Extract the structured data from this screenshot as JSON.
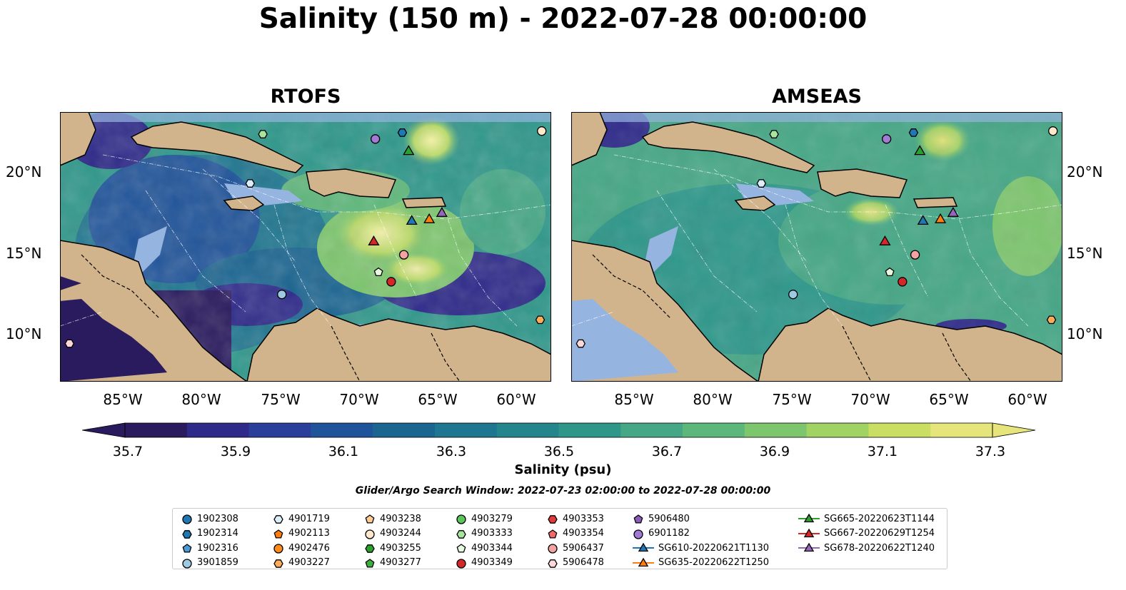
{
  "figure": {
    "title": "Salinity (150 m) - 2022-07-28 00:00:00",
    "panels": [
      {
        "id": "left",
        "title": "RTOFS"
      },
      {
        "id": "right",
        "title": "AMSEAS"
      }
    ],
    "lat_ticks": [
      "20°N",
      "15°N",
      "10°N"
    ],
    "lon_ticks": [
      "85°W",
      "80°W",
      "75°W",
      "70°W",
      "65°W",
      "60°W"
    ],
    "colorbar": {
      "label": "Salinity (psu)",
      "ticks": [
        "35.7",
        "35.9",
        "36.1",
        "36.3",
        "36.5",
        "36.7",
        "36.9",
        "37.1",
        "37.3"
      ],
      "colors": [
        "#2a1a5e",
        "#2e2a8a",
        "#293f9a",
        "#20549a",
        "#1b6591",
        "#1f7690",
        "#23868c",
        "#2e978a",
        "#45a785",
        "#5db77a",
        "#7dc66e",
        "#a1d264",
        "#c9de62",
        "#e5e57c"
      ],
      "extend": "both",
      "colormap": "haline"
    },
    "search_window": "Glider/Argo Search Window: 2022-07-23 02:00:00 to 2022-07-28 00:00:00",
    "colors": {
      "land": "#d2b48c",
      "shelf": "#96b4e0"
    }
  },
  "legend": {
    "entries": [
      {
        "label": "1902308",
        "marker": "circle",
        "color": "#1f77b4"
      },
      {
        "label": "1902314",
        "marker": "hexagon",
        "color": "#1f77b4"
      },
      {
        "label": "1902316",
        "marker": "pentagon",
        "color": "#4a9bd6"
      },
      {
        "label": "3901859",
        "marker": "circle",
        "color": "#9ecae1"
      },
      {
        "label": "4901719",
        "marker": "hexagon",
        "color": "#dceefa"
      },
      {
        "label": "4902113",
        "marker": "pentagon",
        "color": "#ff7f0e"
      },
      {
        "label": "4902476",
        "marker": "circle",
        "color": "#ff8c1a"
      },
      {
        "label": "4903227",
        "marker": "hexagon",
        "color": "#ffad5c"
      },
      {
        "label": "4903238",
        "marker": "pentagon",
        "color": "#ffcc99"
      },
      {
        "label": "4903244",
        "marker": "circle",
        "color": "#ffe8cc"
      },
      {
        "label": "4903255",
        "marker": "hexagon",
        "color": "#2ca02c"
      },
      {
        "label": "4903277",
        "marker": "pentagon",
        "color": "#3cb03c"
      },
      {
        "label": "4903279",
        "marker": "circle",
        "color": "#5cc65c"
      },
      {
        "label": "4903333",
        "marker": "hexagon",
        "color": "#a8e6a0"
      },
      {
        "label": "4903344",
        "marker": "pentagon",
        "color": "#e8f8e0"
      },
      {
        "label": "4903349",
        "marker": "circle",
        "color": "#d62728"
      },
      {
        "label": "4903353",
        "marker": "hexagon",
        "color": "#e03a3a"
      },
      {
        "label": "4903354",
        "marker": "pentagon",
        "color": "#f06a6a"
      },
      {
        "label": "5906437",
        "marker": "circle",
        "color": "#f4a3a3"
      },
      {
        "label": "5906478",
        "marker": "hexagon",
        "color": "#fcd8d8"
      },
      {
        "label": "5906480",
        "marker": "pentagon",
        "color": "#8a5cb8"
      },
      {
        "label": "6901182",
        "marker": "circle",
        "color": "#a37ad4"
      },
      {
        "label": "SG610-20220621T1130",
        "marker": "triangle-line",
        "color": "#1f77b4"
      },
      {
        "label": "SG635-20220622T1250",
        "marker": "triangle-line",
        "color": "#ff7f0e"
      },
      {
        "label": "SG665-20220623T1144",
        "marker": "triangle-line",
        "color": "#2ca02c"
      },
      {
        "label": "SG667-20220629T1254",
        "marker": "triangle-line",
        "color": "#d62728"
      },
      {
        "label": "SG678-20220622T1240",
        "marker": "triangle-line",
        "color": "#9467bd"
      }
    ]
  },
  "observations": [
    {
      "id": "1902314",
      "lon": -67.4,
      "lat": 22.7
    },
    {
      "id": "6901182",
      "lon": -69.1,
      "lat": 22.3
    },
    {
      "id": "4903333",
      "lon": -76.2,
      "lat": 22.6
    },
    {
      "id": "4903244",
      "lon": -58.6,
      "lat": 22.8
    },
    {
      "id": "4901719",
      "lon": -77.0,
      "lat": 19.5
    },
    {
      "id": "SG665-20220623T1144",
      "lon": -67.0,
      "lat": 21.5
    },
    {
      "id": "SG610-20220621T1130",
      "lon": -66.8,
      "lat": 17.1
    },
    {
      "id": "SG635-20220622T1250",
      "lon": -65.7,
      "lat": 17.2
    },
    {
      "id": "SG678-20220622T1240",
      "lon": -64.9,
      "lat": 17.6
    },
    {
      "id": "SG667-20220629T1254",
      "lon": -69.2,
      "lat": 15.8
    },
    {
      "id": "5906437",
      "lon": -67.3,
      "lat": 15.0
    },
    {
      "id": "4903344",
      "lon": -68.9,
      "lat": 13.9
    },
    {
      "id": "4903349",
      "lon": -68.1,
      "lat": 13.3
    },
    {
      "id": "3901859",
      "lon": -75.0,
      "lat": 12.5
    },
    {
      "id": "4903227",
      "lon": -58.7,
      "lat": 10.9
    },
    {
      "id": "5906478",
      "lon": -88.4,
      "lat": 9.4
    }
  ]
}
